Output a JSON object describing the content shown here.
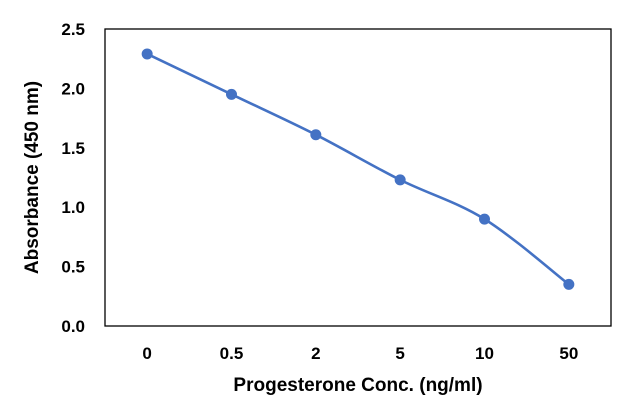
{
  "chart_data": {
    "type": "line",
    "title": "",
    "xlabel": "Progesterone Conc. (ng/ml)",
    "ylabel": "Absorbance (450 nm)",
    "categories": [
      "0",
      "0.5",
      "2",
      "5",
      "10",
      "50"
    ],
    "series": [
      {
        "values": [
          2.29,
          1.95,
          1.61,
          1.23,
          0.9,
          0.35
        ]
      }
    ],
    "ylim": [
      0,
      2.5
    ],
    "yticks": [
      "0.0",
      "0.5",
      "1.0",
      "1.5",
      "2.0",
      "2.5"
    ],
    "grid": false,
    "legend": "none",
    "x_scale": "categorical",
    "line_style": "smoothed",
    "colors": {
      "series": "#4472C4",
      "frame": "#000000"
    }
  }
}
